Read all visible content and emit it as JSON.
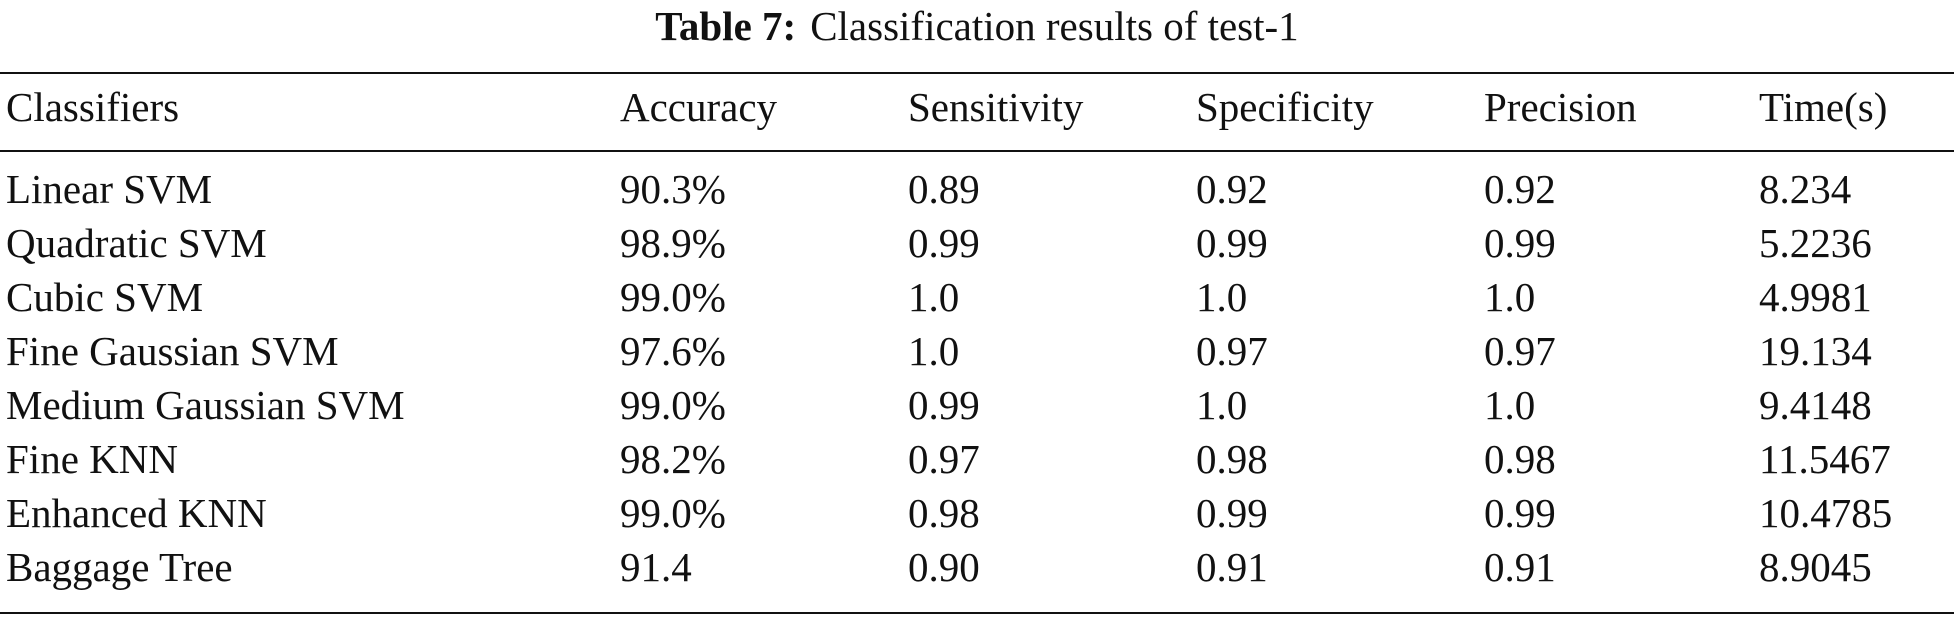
{
  "caption": {
    "label": "Table 7:",
    "text": "Classification results of test-1"
  },
  "table": {
    "headers": [
      "Classifiers",
      "Accuracy",
      "Sensitivity",
      "Specificity",
      "Precision",
      "Time(s)"
    ],
    "rows": [
      [
        "Linear SVM",
        "90.3%",
        "0.89",
        "0.92",
        "0.92",
        "8.234"
      ],
      [
        "Quadratic SVM",
        "98.9%",
        "0.99",
        "0.99",
        "0.99",
        "5.2236"
      ],
      [
        "Cubic SVM",
        "99.0%",
        "1.0",
        "1.0",
        "1.0",
        "4.9981"
      ],
      [
        "Fine Gaussian SVM",
        "97.6%",
        "1.0",
        "0.97",
        "0.97",
        "19.134"
      ],
      [
        "Medium Gaussian SVM",
        "99.0%",
        "0.99",
        "1.0",
        "1.0",
        "9.4148"
      ],
      [
        "Fine KNN",
        "98.2%",
        "0.97",
        "0.98",
        "0.98",
        "11.5467"
      ],
      [
        "Enhanced KNN",
        "99.0%",
        "0.98",
        "0.99",
        "0.99",
        "10.4785"
      ],
      [
        "Baggage Tree",
        "91.4",
        "0.90",
        "0.91",
        "0.91",
        "8.9045"
      ]
    ]
  }
}
